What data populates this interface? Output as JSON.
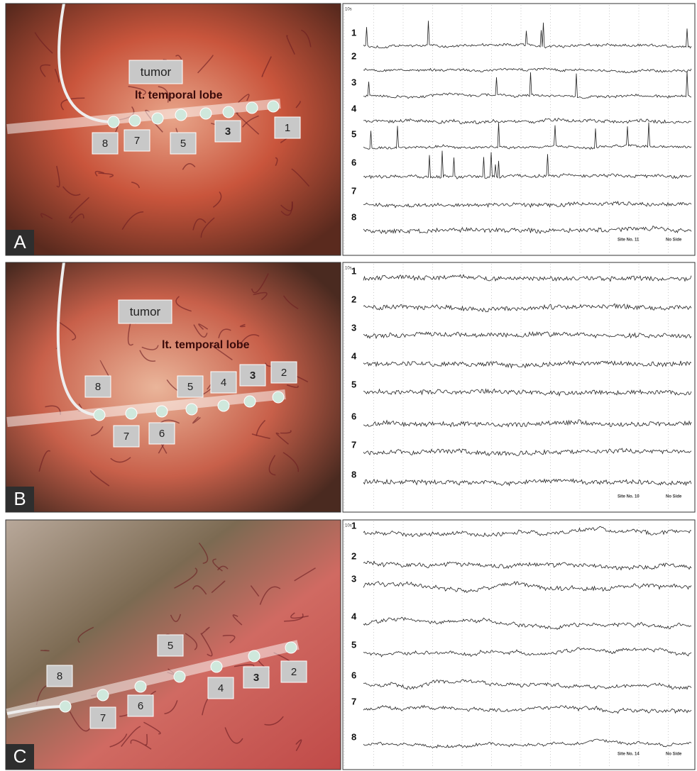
{
  "panels": [
    {
      "letter": "A",
      "photo_labels": [
        "tumor",
        "lt. temporal lobe",
        "8",
        "7",
        "5",
        "3",
        "1"
      ],
      "eeg": {
        "time_scale": "10s",
        "channels": [
          "1",
          "2",
          "3",
          "4",
          "5",
          "6",
          "7",
          "8"
        ],
        "site": "Site No. 11",
        "side": "No Side"
      }
    },
    {
      "letter": "B",
      "photo_labels": [
        "tumor",
        "lt. temporal lobe",
        "8",
        "5",
        "4",
        "3",
        "2",
        "7",
        "6"
      ],
      "eeg": {
        "time_scale": "10s",
        "channels": [
          "1",
          "2",
          "3",
          "4",
          "5",
          "6",
          "7",
          "8"
        ],
        "site": "Site No. 10",
        "side": "No Side"
      }
    },
    {
      "letter": "C",
      "photo_labels": [
        "5",
        "8",
        "4",
        "3",
        "2",
        "6",
        "7"
      ],
      "eeg": {
        "time_scale": "10s",
        "channels": [
          "1",
          "2",
          "3",
          "4",
          "5",
          "6",
          "7",
          "8"
        ],
        "site": "Site No. 14",
        "side": "No Side"
      }
    }
  ]
}
